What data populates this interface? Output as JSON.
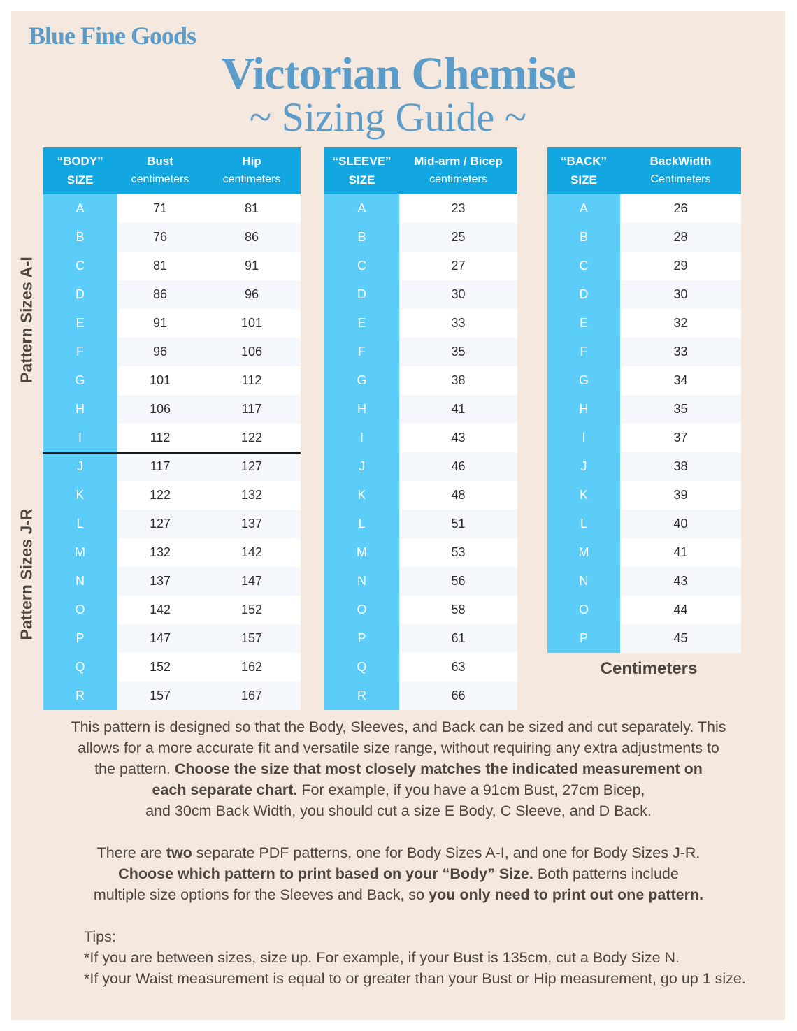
{
  "brand": "Blue Fine Goods",
  "title": "Victorian Chemise",
  "subtitle": "~ Sizing Guide ~",
  "side_labels": {
    "top": "Pattern Sizes A-I",
    "bottom": "Pattern Sizes J-R"
  },
  "body_table": {
    "headers": [
      {
        "line1": "“BODY”",
        "line2": "SIZE"
      },
      {
        "line1": "Bust",
        "line2": "centimeters"
      },
      {
        "line1": "Hip",
        "line2": "centimeters"
      }
    ],
    "rows": [
      [
        "A",
        "71",
        "81"
      ],
      [
        "B",
        "76",
        "86"
      ],
      [
        "C",
        "81",
        "91"
      ],
      [
        "D",
        "86",
        "96"
      ],
      [
        "E",
        "91",
        "101"
      ],
      [
        "F",
        "96",
        "106"
      ],
      [
        "G",
        "101",
        "112"
      ],
      [
        "H",
        "106",
        "117"
      ],
      [
        "I",
        "112",
        "122"
      ],
      [
        "J",
        "117",
        "127"
      ],
      [
        "K",
        "122",
        "132"
      ],
      [
        "L",
        "127",
        "137"
      ],
      [
        "M",
        "132",
        "142"
      ],
      [
        "N",
        "137",
        "147"
      ],
      [
        "O",
        "142",
        "152"
      ],
      [
        "P",
        "147",
        "157"
      ],
      [
        "Q",
        "152",
        "162"
      ],
      [
        "R",
        "157",
        "167"
      ]
    ]
  },
  "sleeve_table": {
    "headers": [
      {
        "line1": "“SLEEVE”",
        "line2": "SIZE"
      },
      {
        "line1": "Mid-arm / Bicep",
        "line2": "centimeters"
      }
    ],
    "rows": [
      [
        "A",
        "23"
      ],
      [
        "B",
        "25"
      ],
      [
        "C",
        "27"
      ],
      [
        "D",
        "30"
      ],
      [
        "E",
        "33"
      ],
      [
        "F",
        "35"
      ],
      [
        "G",
        "38"
      ],
      [
        "H",
        "41"
      ],
      [
        "I",
        "43"
      ],
      [
        "J",
        "46"
      ],
      [
        "K",
        "48"
      ],
      [
        "L",
        "51"
      ],
      [
        "M",
        "53"
      ],
      [
        "N",
        "56"
      ],
      [
        "O",
        "58"
      ],
      [
        "P",
        "61"
      ],
      [
        "Q",
        "63"
      ],
      [
        "R",
        "66"
      ]
    ]
  },
  "back_table": {
    "headers": [
      {
        "line1": "“BACK”",
        "line2": "SIZE"
      },
      {
        "line1": "BackWidth",
        "line2": "Centimeters"
      }
    ],
    "rows": [
      [
        "A",
        "26"
      ],
      [
        "B",
        "28"
      ],
      [
        "C",
        "29"
      ],
      [
        "D",
        "30"
      ],
      [
        "E",
        "32"
      ],
      [
        "F",
        "33"
      ],
      [
        "G",
        "34"
      ],
      [
        "H",
        "35"
      ],
      [
        "I",
        "37"
      ],
      [
        "J",
        "38"
      ],
      [
        "K",
        "39"
      ],
      [
        "L",
        "40"
      ],
      [
        "M",
        "41"
      ],
      [
        "N",
        "43"
      ],
      [
        "O",
        "44"
      ],
      [
        "P",
        "45"
      ]
    ]
  },
  "back_footer": "Centimeters",
  "paragraph1": {
    "l1": "This pattern is designed so that the Body, Sleeves, and Back can be sized and cut separately. This",
    "l2": "allows for a more accurate fit and versatile size range, without requiring any extra adjustments to",
    "l3a": "the pattern. ",
    "l3b": "Choose the size that most closely matches the indicated measurement on",
    "l4b": "each separate chart.",
    "l4a": " For example, if you have a 91cm Bust, 27cm Bicep,",
    "l5": "and 30cm Back Width, you should cut a size E Body, C Sleeve, and D Back."
  },
  "paragraph2": {
    "l1a": "There are ",
    "l1b": "two",
    "l1c": " separate PDF patterns, one for Body Sizes A-I, and one for Body Sizes J-R.",
    "l2b": "Choose which pattern to print based on your “Body” Size.",
    "l2a": " Both patterns include",
    "l3a": "multiple size options for the Sleeves and Back, so ",
    "l3b": "you only need to print out one pattern."
  },
  "tips": {
    "heading": "Tips:",
    "items": [
      "*If you are between sizes, size up. For example, if your Bust is 135cm, cut a Body Size N.",
      "*If your Waist measurement is equal to or greater than your Bust or Hip measurement, go up 1 size."
    ]
  },
  "colors": {
    "background": "#f5e9df",
    "title": "#5b9cc9",
    "header": "#12a7e0",
    "size_column": "#5cccf8",
    "text": "#4d4540"
  }
}
